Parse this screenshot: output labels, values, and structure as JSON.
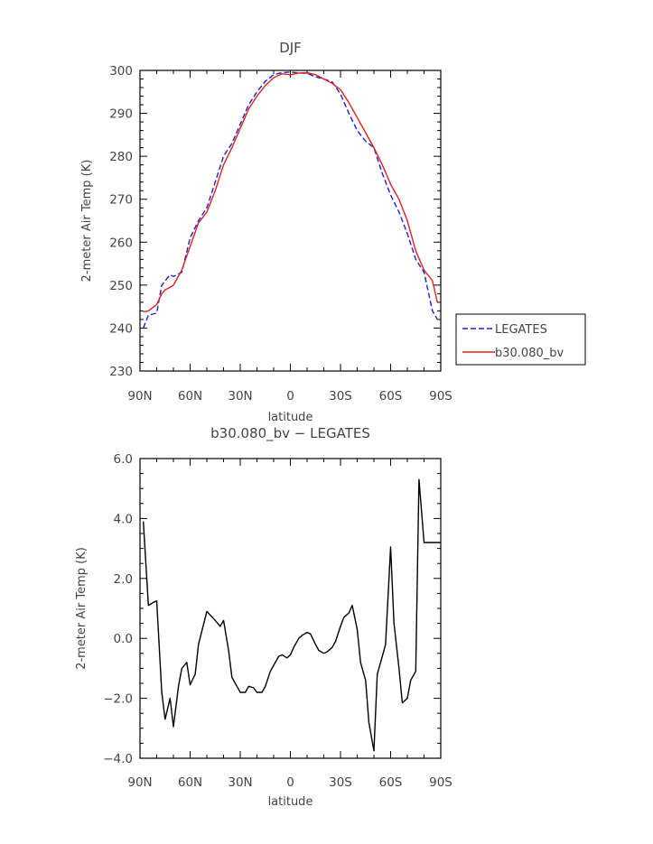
{
  "chart_data": [
    {
      "type": "line",
      "title": "DJF",
      "xlabel": "latitude",
      "ylabel": "2-meter Air Temp (K)",
      "xlim": [
        -90,
        90
      ],
      "ylim": [
        230,
        300
      ],
      "xtick_labels": [
        "90N",
        "60N",
        "30N",
        "0",
        "30S",
        "60S",
        "90S"
      ],
      "ytick_labels": [
        "230",
        "240",
        "250",
        "260",
        "270",
        "280",
        "290",
        "300"
      ],
      "x": [
        -88,
        -85,
        -80,
        -77,
        -75,
        -72,
        -70,
        -65,
        -60,
        -55,
        -50,
        -45,
        -40,
        -35,
        -30,
        -25,
        -20,
        -15,
        -10,
        -5,
        0,
        5,
        10,
        15,
        20,
        25,
        30,
        35,
        40,
        45,
        50,
        55,
        60,
        65,
        70,
        75,
        80,
        85,
        88
      ],
      "series": [
        {
          "name": "LEGATES",
          "color": "#1f1fd0",
          "dash": true,
          "values": [
            240.0,
            243.0,
            243.5,
            250.0,
            251.0,
            252.4,
            252.0,
            253.0,
            261.0,
            265.0,
            268.0,
            274.0,
            280.0,
            283.0,
            287.5,
            292.0,
            295.0,
            297.5,
            299.0,
            299.5,
            299.6,
            299.4,
            299.3,
            298.5,
            298.0,
            297.3,
            294.5,
            290.0,
            286.0,
            283.5,
            282.0,
            276.0,
            271.0,
            267.0,
            262.0,
            256.0,
            253.0,
            244.0,
            242.0
          ]
        },
        {
          "name": "b30.080_bv",
          "color": "#e02020",
          "dash": false,
          "values": [
            243.8,
            244.0,
            245.5,
            248.0,
            248.9,
            249.5,
            250.0,
            253.5,
            259.0,
            264.5,
            267.0,
            272.0,
            278.0,
            282.0,
            286.5,
            291.0,
            294.0,
            296.5,
            298.3,
            299.2,
            299.0,
            299.4,
            299.5,
            299.0,
            298.0,
            297.0,
            295.5,
            292.5,
            289.0,
            285.5,
            282.0,
            278.0,
            273.5,
            270.0,
            265.0,
            258.0,
            253.5,
            251.0,
            246.0
          ]
        }
      ]
    },
    {
      "type": "line",
      "title": "b30.080_bv − LEGATES",
      "xlabel": "latitude",
      "ylabel": "2-meter Air Temp (K)",
      "xlim": [
        -90,
        90
      ],
      "ylim": [
        -4.0,
        6.0
      ],
      "xtick_labels": [
        "90N",
        "60N",
        "30N",
        "0",
        "30S",
        "60S",
        "90S"
      ],
      "ytick_labels": [
        "−4.0",
        "−2.0",
        "0.0",
        "2.0",
        "4.0",
        "6.0"
      ],
      "x": [
        -88,
        -85,
        -82,
        -80,
        -77,
        -75,
        -72,
        -70,
        -67,
        -65,
        -62,
        -60,
        -57,
        -55,
        -50,
        -45,
        -42,
        -40,
        -37,
        -35,
        -30,
        -27,
        -25,
        -22,
        -20,
        -17,
        -15,
        -12,
        -10,
        -7,
        -5,
        -2,
        0,
        2,
        5,
        7,
        10,
        12,
        15,
        17,
        20,
        22,
        25,
        27,
        30,
        32,
        35,
        37,
        40,
        42,
        45,
        47,
        50,
        52,
        55,
        57,
        60,
        62,
        65,
        67,
        70,
        72,
        75,
        77,
        80,
        82,
        85,
        87,
        90
      ],
      "series": [
        {
          "name": "",
          "color": "#000000",
          "dash": false,
          "values": [
            3.9,
            1.1,
            1.2,
            1.25,
            -1.8,
            -2.7,
            -2.0,
            -2.95,
            -1.6,
            -1.0,
            -0.8,
            -1.55,
            -1.2,
            -0.2,
            0.9,
            0.6,
            0.4,
            0.6,
            -0.4,
            -1.3,
            -1.8,
            -1.8,
            -1.6,
            -1.65,
            -1.8,
            -1.8,
            -1.6,
            -1.1,
            -0.9,
            -0.6,
            -0.55,
            -0.65,
            -0.55,
            -0.3,
            0.0,
            0.1,
            0.2,
            0.15,
            -0.2,
            -0.4,
            -0.5,
            -0.45,
            -0.3,
            -0.1,
            0.4,
            0.7,
            0.85,
            1.1,
            0.3,
            -0.8,
            -1.4,
            -2.8,
            -3.75,
            -1.2,
            -0.6,
            -0.2,
            3.05,
            0.5,
            -1.0,
            -2.15,
            -2.0,
            -1.4,
            -1.1,
            5.3,
            3.2,
            3.2,
            3.2,
            3.2,
            3.2
          ]
        }
      ]
    }
  ]
}
